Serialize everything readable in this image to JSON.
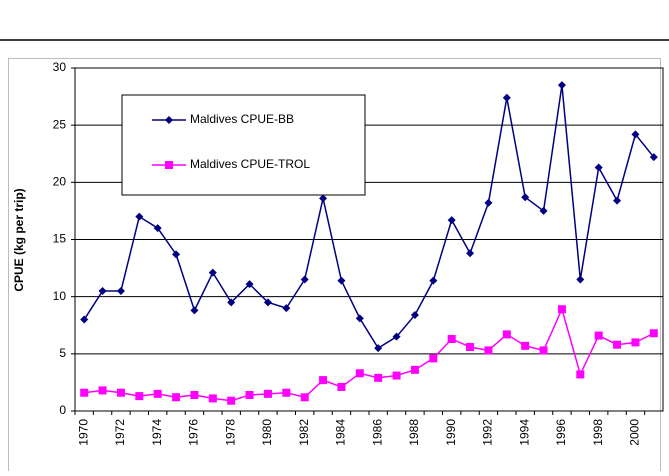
{
  "chart_data": {
    "type": "line",
    "y_label": "CPUE (kg per trip)",
    "categories": [
      "1970",
      null,
      "1972",
      null,
      "1974",
      null,
      "1976",
      null,
      "1978",
      null,
      "1980",
      null,
      "1982",
      null,
      "1984",
      null,
      "1986",
      null,
      "1988",
      null,
      "1990",
      null,
      "1992",
      null,
      "1994",
      null,
      "1996",
      null,
      "1998",
      null,
      "2000",
      null
    ],
    "series": [
      {
        "name": "Maldives CPUE-BB",
        "color": "#000080",
        "marker": "diamond",
        "values": [
          8.0,
          10.5,
          10.5,
          17.0,
          16.0,
          13.7,
          8.8,
          12.1,
          9.5,
          11.1,
          9.5,
          9.0,
          11.5,
          18.6,
          11.4,
          8.1,
          5.5,
          6.5,
          8.4,
          11.4,
          16.7,
          13.8,
          18.2,
          27.4,
          18.7,
          17.5,
          28.5,
          11.5,
          21.3,
          18.4,
          24.2,
          22.2
        ]
      },
      {
        "name": "Maldives CPUE-TROL",
        "color": "#ff00ff",
        "marker": "square",
        "values": [
          1.6,
          1.8,
          1.6,
          1.3,
          1.5,
          1.2,
          1.4,
          1.1,
          0.9,
          1.4,
          1.5,
          1.6,
          1.2,
          2.7,
          2.1,
          3.3,
          2.9,
          3.1,
          3.6,
          4.6,
          6.3,
          5.6,
          5.3,
          6.7,
          5.7,
          5.3,
          8.9,
          3.2,
          6.6,
          5.8,
          6.0,
          6.8
        ]
      }
    ],
    "ylim": [
      0,
      30
    ],
    "yticks": [
      0,
      5,
      10,
      15,
      20,
      25,
      30
    ],
    "grid": true
  }
}
